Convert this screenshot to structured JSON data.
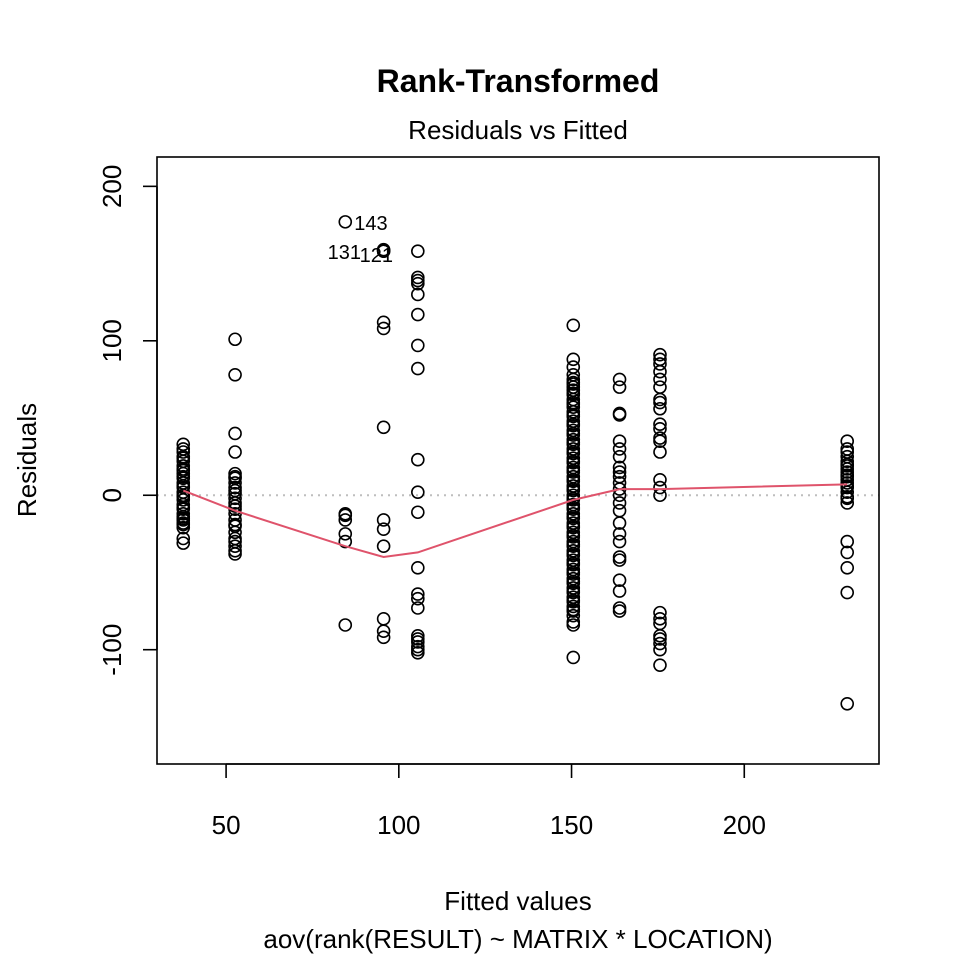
{
  "chart_data": {
    "type": "scatter",
    "title": "Rank-Transformed",
    "subtitle": "Residuals vs Fitted",
    "xlabel": "Fitted values",
    "xlabel2": "aov(rank(RESULT) ~ MATRIX * LOCATION)",
    "ylabel": "Residuals",
    "xlim": [
      30,
      239
    ],
    "ylim": [
      -174,
      219
    ],
    "xticks": [
      50,
      100,
      150,
      200
    ],
    "yticks": [
      -100,
      0,
      100,
      200
    ],
    "reference_line_y": 0,
    "colors": {
      "points": "#000000",
      "smooth": "#DF536B",
      "refline": "#BEBEBE"
    },
    "groups": [
      {
        "x": 37.6,
        "y": [
          33,
          28,
          25,
          22,
          19,
          16,
          14,
          11,
          8,
          5,
          2,
          0,
          -3,
          -6,
          -9,
          -12,
          -14,
          -16,
          -18,
          -21,
          -28,
          -31,
          30,
          24,
          17,
          12,
          6,
          -1,
          -8,
          -15,
          -19
        ]
      },
      {
        "x": 52.6,
        "y": [
          101,
          78,
          40,
          28,
          14,
          11,
          8,
          5,
          1,
          -2,
          -5,
          -9,
          -12,
          -16,
          -20,
          -24,
          -28,
          -33,
          -36,
          -38,
          12,
          3,
          -7,
          -19,
          -30
        ]
      },
      {
        "x": 84.5,
        "y": [
          -12,
          -13,
          -16,
          -25,
          -30,
          -84
        ]
      },
      {
        "x": 95.6,
        "y": [
          159,
          112,
          108,
          44,
          -16,
          -22,
          -33,
          -80,
          -88,
          -92
        ]
      },
      {
        "x": 105.5,
        "y": [
          158,
          141,
          139,
          137,
          130,
          117,
          97,
          82,
          23,
          2,
          -11,
          -47,
          -64,
          -67,
          -73,
          -91,
          -93,
          -95,
          -98,
          -100,
          -102
        ]
      },
      {
        "x": 150.5,
        "y": [
          110,
          88,
          83,
          78,
          75,
          72,
          70,
          68,
          65,
          62,
          60,
          57,
          54,
          51,
          48,
          45,
          42,
          39,
          36,
          33,
          30,
          27,
          24,
          21,
          18,
          15,
          12,
          9,
          6,
          3,
          0,
          -3,
          -6,
          -9,
          -12,
          -15,
          -18,
          -21,
          -24,
          -27,
          -30,
          -33,
          -36,
          -39,
          -42,
          -45,
          -48,
          -51,
          -54,
          -57,
          -60,
          -63,
          -66,
          -69,
          -72,
          -75,
          -78,
          -82,
          -84,
          -105,
          73,
          66,
          59,
          52,
          46,
          40,
          34,
          28,
          22,
          16,
          10,
          4,
          -2,
          -8,
          -14,
          -20,
          -26,
          -32,
          -38,
          -44,
          -50,
          -56,
          -62,
          -68,
          -74
        ]
      },
      {
        "x": 163.9,
        "y": [
          75,
          70,
          53,
          52,
          35,
          30,
          25,
          18,
          15,
          12,
          8,
          4,
          0,
          -5,
          -10,
          -18,
          -25,
          -30,
          -40,
          -42,
          -55,
          -62,
          -73,
          -75
        ]
      },
      {
        "x": 175.6,
        "y": [
          91,
          88,
          85,
          80,
          75,
          70,
          62,
          60,
          56,
          46,
          43,
          37,
          35,
          28,
          10,
          5,
          0,
          -76,
          -80,
          -83,
          -91,
          -93,
          -96,
          -100,
          -110
        ]
      },
      {
        "x": 229.8,
        "y": [
          35,
          30,
          25,
          22,
          20,
          17,
          15,
          12,
          10,
          8,
          5,
          2,
          -2,
          -5,
          -30,
          -37,
          -47,
          -63,
          -135,
          28,
          19,
          13,
          6,
          -1
        ]
      }
    ],
    "labeled_points": [
      {
        "x": 84.5,
        "y": 177,
        "label": "143"
      },
      {
        "x": 95.6,
        "y": 158,
        "label": "121"
      },
      {
        "x": 95.6,
        "y": 158,
        "label": "131"
      }
    ],
    "smooth_line": [
      {
        "x": 37.6,
        "y": 3
      },
      {
        "x": 52.6,
        "y": -10
      },
      {
        "x": 84.5,
        "y": -33
      },
      {
        "x": 95.6,
        "y": -40
      },
      {
        "x": 105.5,
        "y": -37
      },
      {
        "x": 150.5,
        "y": -3
      },
      {
        "x": 163.9,
        "y": 4
      },
      {
        "x": 175.6,
        "y": 4
      },
      {
        "x": 229.8,
        "y": 7
      }
    ]
  }
}
